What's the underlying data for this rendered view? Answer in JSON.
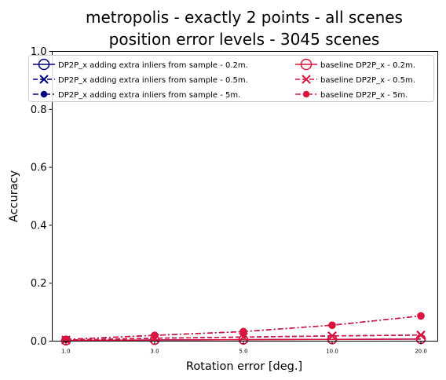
{
  "chart_data": {
    "type": "line",
    "title_line1": "metropolis - exactly 2 points - all scenes",
    "title_line2": "position error levels - 3045 scenes",
    "xlabel": "Rotation error [deg.]",
    "ylabel": "Accuracy",
    "x": [
      1.0,
      3.0,
      5.0,
      10.0,
      20.0
    ],
    "x_tick_labels": [
      "1.0",
      "3.0",
      "5.0",
      "10.0",
      "20.0"
    ],
    "ylim": [
      0.0,
      1.0
    ],
    "y_ticks": [
      0.0,
      0.2,
      0.4,
      0.6,
      0.8,
      1.0
    ],
    "y_tick_labels": [
      "0.0",
      "0.2",
      "0.4",
      "0.6",
      "0.8",
      "1.0"
    ],
    "grid": false,
    "legend_position": "top",
    "series": [
      {
        "name": "DP2P_x adding extra inliers from sample - 0.2m.",
        "color": "#00007f",
        "marker": "circle-open",
        "dash": "solid",
        "values": [
          0.002,
          0.004,
          0.005,
          0.006,
          0.007
        ]
      },
      {
        "name": "DP2P_x adding extra inliers from sample - 0.5m.",
        "color": "#00007f",
        "marker": "x",
        "dash": "dashed",
        "values": [
          0.004,
          0.01,
          0.014,
          0.018,
          0.021
        ]
      },
      {
        "name": "DP2P_x adding extra inliers from sample - 5m.",
        "color": "#00007f",
        "marker": "circle-filled",
        "dash": "dashdot",
        "values": [
          0.006,
          0.02,
          0.033,
          0.055,
          0.087
        ]
      },
      {
        "name": "baseline DP2P_x - 0.2m.",
        "color": "#dc143c",
        "marker": "circle-open",
        "dash": "solid",
        "values": [
          0.002,
          0.004,
          0.005,
          0.006,
          0.007
        ]
      },
      {
        "name": "baseline DP2P_x - 0.5m.",
        "color": "#dc143c",
        "marker": "x",
        "dash": "dashed",
        "values": [
          0.004,
          0.01,
          0.014,
          0.018,
          0.021
        ]
      },
      {
        "name": "baseline DP2P_x - 5m.",
        "color": "#dc143c",
        "marker": "circle-filled",
        "dash": "dashdot",
        "values": [
          0.006,
          0.02,
          0.033,
          0.055,
          0.087
        ]
      }
    ]
  }
}
